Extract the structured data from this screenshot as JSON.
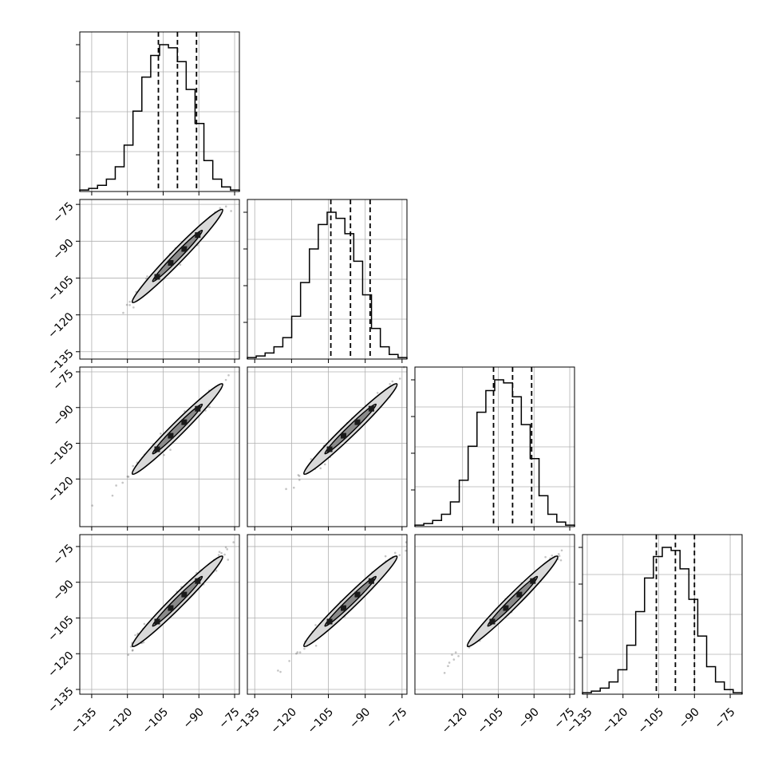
{
  "figure": {
    "type": "corner-plot",
    "n_params": 4,
    "quantile_lines": "dashed"
  },
  "chart_data": {
    "type": "corner",
    "params": [
      {
        "index": 0,
        "q16": -107,
        "median": -99,
        "q84": -91,
        "range": [
          -140,
          -73
        ]
      },
      {
        "index": 1,
        "q16": -104,
        "median": -96,
        "q84": -88,
        "range": [
          -138,
          -73
        ]
      },
      {
        "index": 2,
        "q16": -107,
        "median": -99,
        "q84": -91,
        "range": [
          -140,
          -73
        ]
      },
      {
        "index": 3,
        "q16": -106,
        "median": -98,
        "q84": -90,
        "range": [
          -137,
          -70
        ]
      }
    ],
    "diag_ticks": [
      {
        "tick_values": [
          -135,
          -120,
          -105,
          -90,
          -75
        ],
        "tick_labels": [
          "−135",
          "−120",
          "−105",
          "−90",
          "−75"
        ]
      },
      {
        "tick_values": [
          -135,
          -120,
          -105,
          -90,
          -75
        ],
        "tick_labels": [
          "−135",
          "−120",
          "−105",
          "−90",
          "−75"
        ]
      },
      {
        "tick_values": [
          -120,
          -105,
          -90,
          -75
        ],
        "tick_labels": [
          "−120",
          "−105",
          "−90",
          "−75"
        ]
      },
      {
        "tick_values": [
          -135,
          -120,
          -105,
          -90,
          -75
        ],
        "tick_labels": [
          "−135",
          "−120",
          "−105",
          "−90",
          "−75"
        ]
      }
    ],
    "y_ticks_by_row": [
      null,
      {
        "tick_values": [
          -75,
          -90,
          -105,
          -120,
          -135
        ],
        "tick_labels": [
          "−75",
          "−90",
          "−105",
          "−120",
          "−135"
        ]
      },
      {
        "tick_values": [
          -75,
          -90,
          -105,
          -120
        ],
        "tick_labels": [
          "−75",
          "−90",
          "−105",
          "−120"
        ]
      },
      {
        "tick_values": [
          -75,
          -90,
          -105,
          -120,
          -135
        ],
        "tick_labels": [
          "−75",
          "−90",
          "−105",
          "−120",
          "−135"
        ]
      }
    ],
    "histogram_counts": [
      [
        1,
        2,
        4,
        8,
        16,
        30,
        52,
        74,
        88,
        95,
        93,
        84,
        66,
        44,
        20,
        8,
        3,
        1
      ],
      [
        1,
        2,
        4,
        8,
        14,
        28,
        50,
        72,
        88,
        96,
        92,
        82,
        64,
        42,
        20,
        8,
        3,
        1
      ],
      [
        1,
        2,
        4,
        8,
        16,
        30,
        52,
        74,
        88,
        95,
        93,
        84,
        66,
        44,
        20,
        8,
        3,
        1
      ],
      [
        1,
        2,
        4,
        8,
        16,
        32,
        54,
        76,
        90,
        96,
        94,
        82,
        62,
        38,
        18,
        8,
        3,
        1
      ]
    ],
    "grid": true,
    "colors": {
      "line": "#000000",
      "grid": "#b0b0b0",
      "contour_fill": "#d9d9d9",
      "points": "#555555"
    }
  }
}
